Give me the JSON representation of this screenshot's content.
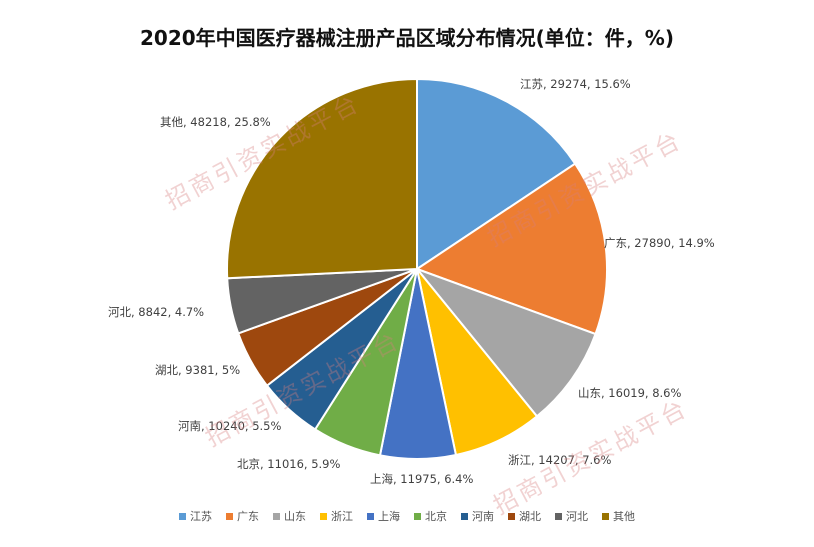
{
  "chart_data": {
    "type": "pie",
    "title": "2020年中国医疗器械注册产品区域分布情况(单位：件，%)",
    "categories": [
      "江苏",
      "广东",
      "山东",
      "浙江",
      "上海",
      "北京",
      "河南",
      "湖北",
      "河北",
      "其他"
    ],
    "values": [
      29274,
      27890,
      16019,
      14207,
      11975,
      11016,
      10240,
      9381,
      8842,
      48218
    ],
    "data_labels": [
      "江苏, 29274, 15.6%",
      "广东, 27890, 14.9%",
      "山东, 16019, 8.6%",
      "浙江, 14207, 7.6%",
      "上海, 11975, 6.4%",
      "北京, 11016, 5.9%",
      "河南, 10240, 5.5%",
      "湖北, 9381, 5%",
      "河北, 8842, 4.7%",
      "其他, 48218, 25.8%"
    ],
    "colors": [
      "#5b9bd5",
      "#ed7d31",
      "#a5a5a5",
      "#ffc000",
      "#4472c4",
      "#70ad47",
      "#255e91",
      "#9e480e",
      "#636363",
      "#997300"
    ],
    "legend_position": "bottom"
  },
  "watermark_text": "招商引资实战平台"
}
